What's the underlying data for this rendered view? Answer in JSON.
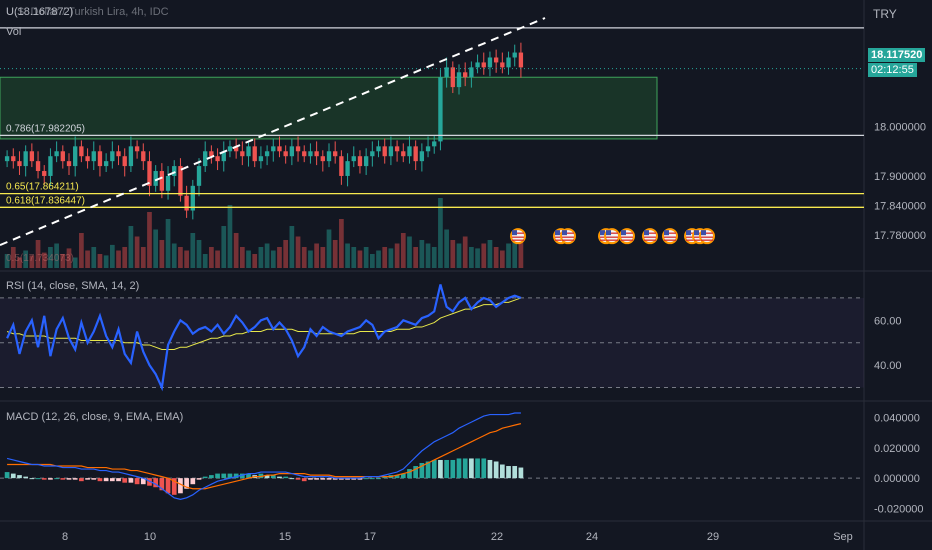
{
  "header": {
    "symbol_line": "U.S. Dollar / Turkish Lira, 4h, IDC",
    "ohlc_fragment": "U(18.167872)",
    "volume_label": "Vol",
    "currency": "TRY"
  },
  "price_panel": {
    "last_price": "18.117520",
    "countdown": "02:12:55",
    "y_ticks": [
      "18.000000",
      "17.900000",
      "17.840000",
      "17.780000"
    ],
    "fib_levels": [
      {
        "label": "0.786(17.982205)",
        "value": 17.982205,
        "color": "#d1d4dc"
      },
      {
        "label": "0.65(17.864211)",
        "value": 17.864211,
        "color": "#f7e94f"
      },
      {
        "label": "0.618(17.836447)",
        "value": 17.836447,
        "color": "#f7e94f"
      }
    ],
    "faded_label": "0.5(17.734073)",
    "event_count": 11
  },
  "rsi_panel": {
    "title": "RSI (14, close, SMA, 14, 2)",
    "y_ticks": [
      "60.00",
      "40.00"
    ]
  },
  "macd_panel": {
    "title": "MACD (12, 26, close, 9, EMA, EMA)",
    "y_ticks": [
      "0.040000",
      "0.020000",
      "0.000000",
      "-0.020000"
    ]
  },
  "x_axis": {
    "ticks": [
      "8",
      "10",
      "15",
      "17",
      "22",
      "24",
      "29",
      "Sep"
    ]
  },
  "colors": {
    "background": "#131722",
    "up": "#26a69a",
    "down": "#ef5350",
    "rsi": "#2962ff",
    "rsi_ma": "#e8e84a",
    "macd": "#2962ff",
    "signal": "#ff6d00",
    "accent_badge": "#26a69a",
    "fib_yellow": "#f7e94f",
    "zone_fill": "#1f4d2e"
  },
  "chart_data": [
    {
      "type": "candlestick",
      "title": "U.S. Dollar / Turkish Lira, 4h, IDC",
      "ylim": [
        17.72,
        18.25
      ],
      "num_bars": 84,
      "trend_base": [
        17.94,
        17.93,
        17.92,
        17.95,
        17.93,
        17.91,
        17.9,
        17.94,
        17.95,
        17.93,
        17.92,
        17.96,
        17.94,
        17.93,
        17.95,
        17.92,
        17.93,
        17.95,
        17.94,
        17.92,
        17.96,
        17.95,
        17.93,
        17.88,
        17.91,
        17.87,
        17.9,
        17.92,
        17.86,
        17.83,
        17.88,
        17.92,
        17.95,
        17.94,
        17.93,
        17.95,
        17.96,
        17.95,
        17.94,
        17.96,
        17.93,
        17.94,
        17.95,
        17.96,
        17.95,
        17.94,
        17.96,
        17.95,
        17.94,
        17.95,
        17.94,
        17.93,
        17.95,
        17.94,
        17.9,
        17.93,
        17.94,
        17.92,
        17.94,
        17.95,
        17.96,
        17.94,
        17.96,
        17.95,
        17.94,
        17.96,
        17.93,
        17.95,
        17.96,
        17.97,
        18.1,
        18.12,
        18.08,
        18.11,
        18.1,
        18.12,
        18.13,
        18.12,
        18.14,
        18.13,
        18.12,
        18.14,
        18.15,
        18.12
      ],
      "volume_max": 1.0
    },
    {
      "type": "line",
      "title": "RSI (14, close, SMA, 14, 2)",
      "ylim": [
        28,
        78
      ],
      "reference_lines": [
        70,
        50,
        30
      ],
      "series": [
        {
          "name": "RSI",
          "values": [
            52,
            58,
            45,
            55,
            60,
            48,
            62,
            44,
            56,
            61,
            52,
            47,
            59,
            50,
            55,
            62,
            53,
            48,
            56,
            45,
            41,
            55,
            46,
            40,
            36,
            30,
            49,
            55,
            60,
            58,
            54,
            56,
            57,
            55,
            58,
            54,
            57,
            62,
            59,
            55,
            57,
            60,
            61,
            56,
            59,
            56,
            51,
            44,
            48,
            56,
            53,
            57,
            55,
            54,
            53,
            55,
            56,
            57,
            60,
            58,
            52,
            55,
            56,
            57,
            60,
            59,
            58,
            61,
            62,
            64,
            76,
            66,
            64,
            68,
            70,
            65,
            68,
            70,
            69,
            66,
            68,
            70,
            71,
            70
          ]
        },
        {
          "name": "MA",
          "values": [
            55,
            54,
            54,
            53,
            53,
            53,
            53,
            52,
            52,
            52,
            52,
            52,
            51,
            51,
            51,
            51,
            51,
            51,
            51,
            50,
            50,
            50,
            49,
            49,
            48,
            47,
            47,
            47,
            48,
            48,
            49,
            50,
            51,
            52,
            52,
            53,
            53,
            54,
            54,
            55,
            55,
            55,
            56,
            56,
            56,
            56,
            56,
            55,
            55,
            55,
            54,
            54,
            54,
            54,
            54,
            54,
            54,
            55,
            55,
            55,
            55,
            55,
            55,
            56,
            56,
            56,
            57,
            57,
            58,
            59,
            61,
            62,
            63,
            64,
            65,
            65,
            66,
            67,
            67,
            67,
            68,
            68,
            69,
            70
          ]
        }
      ]
    },
    {
      "type": "macd",
      "title": "MACD (12, 26, close, 9, EMA, EMA)",
      "ylim": [
        -0.025,
        0.045
      ],
      "series": [
        {
          "name": "MACD",
          "values": [
            0.013,
            0.012,
            0.011,
            0.01,
            0.009,
            0.009,
            0.008,
            0.008,
            0.008,
            0.007,
            0.007,
            0.007,
            0.006,
            0.006,
            0.006,
            0.005,
            0.005,
            0.004,
            0.004,
            0.003,
            0.002,
            0.001,
            0.0,
            -0.002,
            -0.004,
            -0.007,
            -0.01,
            -0.013,
            -0.014,
            -0.013,
            -0.011,
            -0.008,
            -0.006,
            -0.004,
            -0.002,
            -0.001,
            0.0,
            0.001,
            0.002,
            0.003,
            0.003,
            0.004,
            0.004,
            0.004,
            0.004,
            0.004,
            0.003,
            0.002,
            0.001,
            0.001,
            0.001,
            0.001,
            0.001,
            0.0,
            0.0,
            0.0,
            0.0,
            0.0,
            0.001,
            0.001,
            0.001,
            0.002,
            0.003,
            0.004,
            0.006,
            0.01,
            0.014,
            0.018,
            0.021,
            0.024,
            0.026,
            0.028,
            0.03,
            0.033,
            0.035,
            0.037,
            0.039,
            0.041,
            0.042,
            0.042,
            0.042,
            0.042,
            0.043,
            0.043
          ]
        },
        {
          "name": "Signal",
          "values": [
            0.009,
            0.009,
            0.009,
            0.009,
            0.009,
            0.009,
            0.009,
            0.009,
            0.008,
            0.008,
            0.008,
            0.008,
            0.008,
            0.007,
            0.007,
            0.007,
            0.007,
            0.006,
            0.006,
            0.006,
            0.005,
            0.005,
            0.004,
            0.003,
            0.002,
            0.001,
            0.0,
            -0.002,
            -0.004,
            -0.006,
            -0.007,
            -0.007,
            -0.007,
            -0.006,
            -0.005,
            -0.004,
            -0.003,
            -0.002,
            -0.001,
            0.0,
            0.001,
            0.001,
            0.002,
            0.002,
            0.003,
            0.003,
            0.003,
            0.003,
            0.003,
            0.002,
            0.002,
            0.002,
            0.002,
            0.001,
            0.001,
            0.001,
            0.001,
            0.001,
            0.001,
            0.001,
            0.001,
            0.001,
            0.001,
            0.002,
            0.003,
            0.004,
            0.006,
            0.008,
            0.01,
            0.012,
            0.014,
            0.016,
            0.018,
            0.02,
            0.022,
            0.024,
            0.026,
            0.028,
            0.03,
            0.031,
            0.033,
            0.034,
            0.035,
            0.036
          ]
        }
      ]
    }
  ]
}
